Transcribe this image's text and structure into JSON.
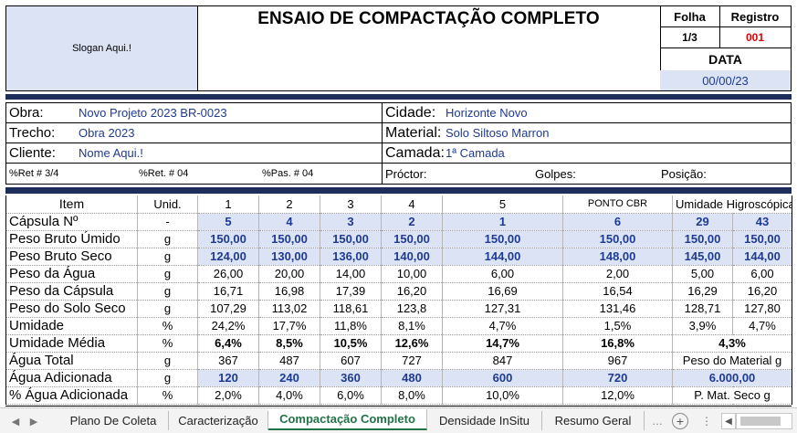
{
  "header": {
    "slogan": "Slogan Aqui.!",
    "title": "ENSAIO DE COMPACTAÇÃO COMPLETO",
    "folha_label": "Folha",
    "folha_value": "1/3",
    "registro_label": "Registro",
    "registro_value": "001",
    "data_label": "DATA",
    "data_value": "00/00/23"
  },
  "info": {
    "obra_label": "Obra:",
    "obra_value": "Novo Projeto 2023 BR-0023",
    "cidade_label": "Cidade:",
    "cidade_value": "Horizonte Novo",
    "trecho_label": "Trecho:",
    "trecho_value": "Obra 2023",
    "material_label": "Material:",
    "material_value": "Solo Siltoso Marron",
    "cliente_label": "Cliente:",
    "cliente_value": "Nome Aqui.!",
    "camada_label": "Camada:",
    "camada_value": "1ª Camada",
    "ret34": "%Ret # 3/4",
    "ret04": "%Ret. # 04",
    "pas04": "%Pas. # 04",
    "proctor": "Próctor:",
    "golpes": "Golpes:",
    "posicao": "Posição:"
  },
  "table": {
    "header": [
      "Item",
      "Unid.",
      "1",
      "2",
      "3",
      "4",
      "5",
      "PONTO CBR",
      "Umidade Higroscópica"
    ],
    "rows": [
      {
        "label": "Cápsula Nº",
        "unit": "-",
        "vals": [
          "5",
          "4",
          "3",
          "2",
          "1",
          "6",
          "29",
          "43"
        ]
      },
      {
        "label": "Peso Bruto Úmido",
        "unit": "g",
        "vals": [
          "150,00",
          "150,00",
          "150,00",
          "150,00",
          "150,00",
          "150,00",
          "150,00",
          "150,00"
        ]
      },
      {
        "label": "Peso Bruto Seco",
        "unit": "g",
        "vals": [
          "124,00",
          "130,00",
          "136,00",
          "140,00",
          "144,00",
          "148,00",
          "145,00",
          "144,00"
        ]
      },
      {
        "label": "Peso da Água",
        "unit": "g",
        "vals": [
          "26,00",
          "20,00",
          "14,00",
          "10,00",
          "6,00",
          "2,00",
          "5,00",
          "6,00"
        ]
      },
      {
        "label": "Peso da Cápsula",
        "unit": "g",
        "vals": [
          "16,71",
          "16,98",
          "17,39",
          "16,20",
          "16,69",
          "16,54",
          "16,29",
          "16,20"
        ]
      },
      {
        "label": "Peso do Solo Seco",
        "unit": "g",
        "vals": [
          "107,29",
          "113,02",
          "118,61",
          "123,8",
          "127,31",
          "131,46",
          "128,71",
          "127,80"
        ]
      },
      {
        "label": "Umidade",
        "unit": "%",
        "vals": [
          "24,2%",
          "17,7%",
          "11,8%",
          "8,1%",
          "4,7%",
          "1,5%",
          "3,9%",
          "4,7%"
        ]
      },
      {
        "label": "Umidade Média",
        "unit": "%",
        "vals": [
          "6,4%",
          "8,5%",
          "10,5%",
          "12,6%",
          "14,7%",
          "16,8%"
        ],
        "hyg": "4,3%"
      },
      {
        "label": "Água Total",
        "unit": "g",
        "vals": [
          "367",
          "487",
          "607",
          "727",
          "847",
          "967"
        ],
        "hyg": "Peso do Material g"
      },
      {
        "label": "Água Adicionada",
        "unit": "g",
        "vals": [
          "120",
          "240",
          "360",
          "480",
          "600",
          "720"
        ],
        "hyg": "6.000,00"
      },
      {
        "label": "% Água Adicionada",
        "unit": "%",
        "vals": [
          "2,0%",
          "4,0%",
          "6,0%",
          "8,0%",
          "10,0%",
          "12,0%"
        ],
        "hyg": "P. Mat. Seco g"
      }
    ]
  },
  "tabs": [
    "Plano De Coleta",
    "Caracterização",
    "Compactação Completo",
    "Densidade InSitu",
    "Resumo Geral"
  ],
  "active_tab": "Compactação Completo",
  "icons": {
    "add_sheet": "plus-circle-icon",
    "more": "ellipsis-icon"
  }
}
